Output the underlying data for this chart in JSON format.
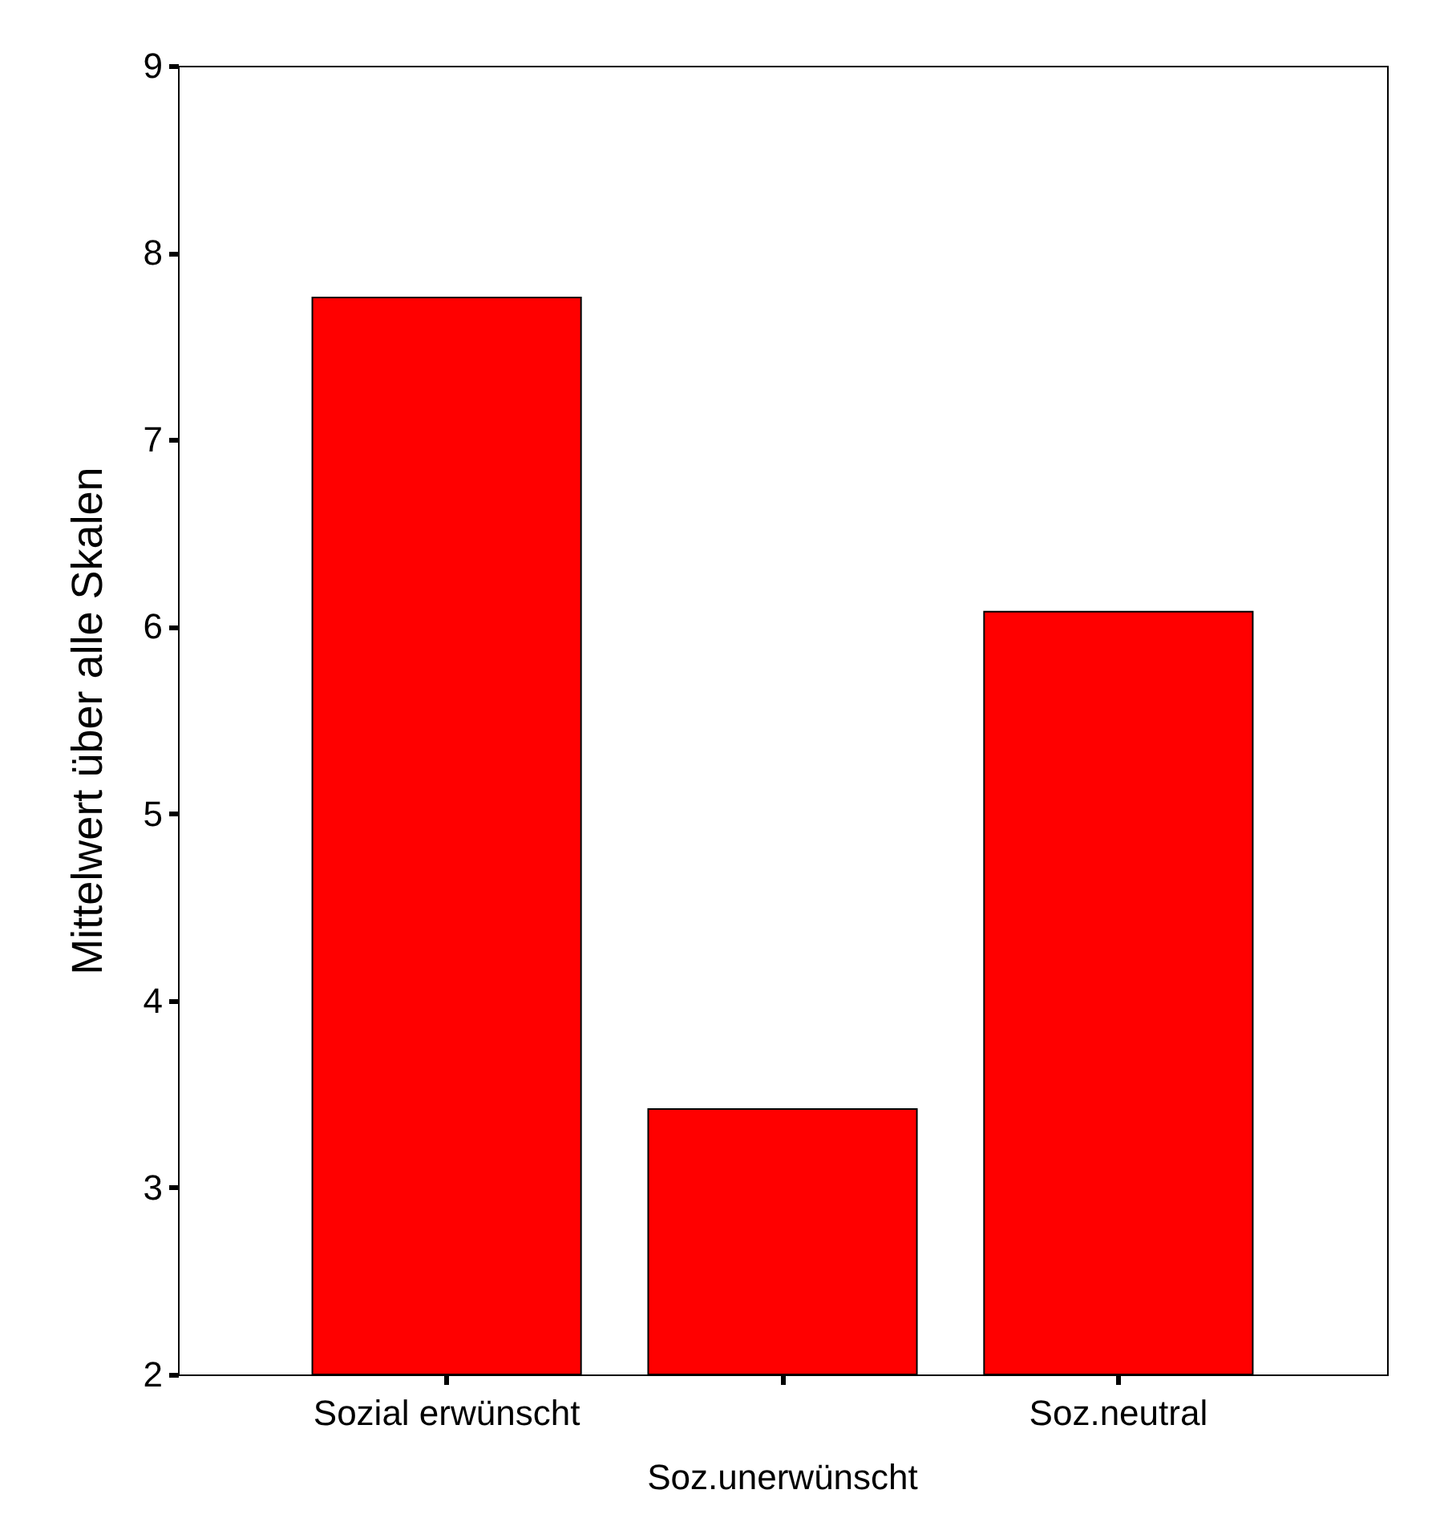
{
  "chart_data": {
    "type": "bar",
    "ylabel": "Mittelwert über alle Skalen",
    "categories": [
      "Sozial erwünscht",
      "Soz.unerwünscht",
      "Soz.neutral"
    ],
    "values": [
      7.76,
      3.42,
      6.08
    ],
    "color": "#ff0000",
    "ylim": [
      2,
      9
    ],
    "yticks": [
      2,
      3,
      4,
      5,
      6,
      7,
      8,
      9
    ],
    "grid": false
  }
}
